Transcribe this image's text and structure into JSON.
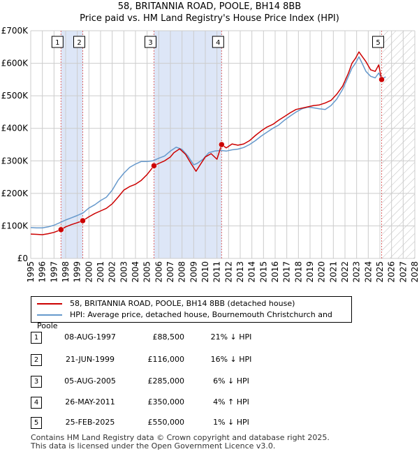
{
  "titles": {
    "line1": "58, BRITANNIA ROAD, POOLE, BH14 8BB",
    "line2": "Price paid vs. HM Land Registry's House Price Index (HPI)"
  },
  "legend": {
    "property_label": "58, BRITANNIA ROAD, POOLE, BH14 8BB (detached house)",
    "hpi_label": "HPI: Average price, detached house, Bournemouth Christchurch and Poole"
  },
  "transactions": [
    {
      "n": "1",
      "date": "08-AUG-1997",
      "price": "£88,500",
      "hpi": "21% ↓ HPI"
    },
    {
      "n": "2",
      "date": "21-JUN-1999",
      "price": "£116,000",
      "hpi": "16% ↓ HPI"
    },
    {
      "n": "3",
      "date": "05-AUG-2005",
      "price": "£285,000",
      "hpi": "6% ↓ HPI"
    },
    {
      "n": "4",
      "date": "26-MAY-2011",
      "price": "£350,000",
      "hpi": "4% ↑ HPI"
    },
    {
      "n": "5",
      "date": "25-FEB-2025",
      "price": "£550,000",
      "hpi": "1% ↓ HPI"
    }
  ],
  "footer": {
    "line1": "Contains HM Land Registry data © Crown copyright and database right 2025.",
    "line2": "This data is licensed under the Open Government Licence v3.0."
  },
  "colors": {
    "property": "#cc0000",
    "hpi": "#6699cc",
    "shade": "#dde6f7",
    "grid": "#cccccc",
    "marker_line": "#dd6666"
  },
  "chart_data": {
    "type": "line",
    "xlim": [
      1995,
      2028
    ],
    "ylim": [
      0,
      700000
    ],
    "xticks": [
      "1995",
      "1996",
      "1997",
      "1998",
      "1999",
      "2000",
      "2001",
      "2002",
      "2003",
      "2004",
      "2005",
      "2006",
      "2007",
      "2008",
      "2009",
      "2010",
      "2011",
      "2012",
      "2013",
      "2014",
      "2015",
      "2016",
      "2017",
      "2018",
      "2019",
      "2020",
      "2021",
      "2022",
      "2023",
      "2024",
      "2025",
      "2026",
      "2027",
      "2028"
    ],
    "yticks": [
      {
        "v": 0,
        "label": "£0"
      },
      {
        "v": 100000,
        "label": "£100K"
      },
      {
        "v": 200000,
        "label": "£200K"
      },
      {
        "v": 300000,
        "label": "£300K"
      },
      {
        "v": 400000,
        "label": "£400K"
      },
      {
        "v": 500000,
        "label": "£500K"
      },
      {
        "v": 600000,
        "label": "£600K"
      },
      {
        "v": 700000,
        "label": "£700K"
      }
    ],
    "shaded_ranges": [
      [
        1997.6,
        1999.47
      ],
      [
        2005.59,
        2011.4
      ]
    ],
    "forecast_start": 2025.15,
    "sales": [
      {
        "n": "1",
        "x": 1997.6,
        "y": 88500
      },
      {
        "n": "2",
        "x": 1999.47,
        "y": 116000
      },
      {
        "n": "3",
        "x": 2005.59,
        "y": 285000
      },
      {
        "n": "4",
        "x": 2011.4,
        "y": 350000
      },
      {
        "n": "5",
        "x": 2025.15,
        "y": 550000
      }
    ],
    "series": [
      {
        "name": "58, BRITANNIA ROAD, POOLE, BH14 8BB (detached house)",
        "x": [
          1995,
          1995.5,
          1996,
          1996.5,
          1997,
          1997.6,
          1998,
          1998.5,
          1999,
          1999.47,
          2000,
          2000.5,
          2001,
          2001.5,
          2002,
          2002.5,
          2003,
          2003.5,
          2004,
          2004.5,
          2005,
          2005.59,
          2006,
          2006.5,
          2007,
          2007.3,
          2007.8,
          2008.3,
          2008.8,
          2009.2,
          2009.6,
          2010,
          2010.5,
          2011,
          2011.4,
          2011.8,
          2012.3,
          2012.8,
          2013.3,
          2013.8,
          2014.3,
          2014.8,
          2015.3,
          2015.8,
          2016.3,
          2016.8,
          2017.3,
          2017.8,
          2018.3,
          2018.8,
          2019.3,
          2019.8,
          2020.3,
          2020.8,
          2021.3,
          2021.8,
          2022.3,
          2022.6,
          2022.9,
          2023.2,
          2023.5,
          2023.8,
          2024.2,
          2024.6,
          2024.9,
          2025.15
        ],
        "y": [
          75000,
          74000,
          73000,
          76000,
          80000,
          88500,
          97000,
          104000,
          110000,
          116000,
          128000,
          138000,
          146000,
          154000,
          168000,
          188000,
          210000,
          221000,
          228000,
          240000,
          258000,
          285000,
          292000,
          300000,
          312000,
          325000,
          337000,
          320000,
          290000,
          268000,
          290000,
          312000,
          322000,
          305000,
          350000,
          340000,
          352000,
          348000,
          352000,
          362000,
          378000,
          392000,
          404000,
          412000,
          425000,
          436000,
          448000,
          458000,
          462000,
          466000,
          470000,
          472000,
          478000,
          486000,
          505000,
          530000,
          570000,
          600000,
          615000,
          635000,
          620000,
          605000,
          580000,
          575000,
          595000,
          550000
        ]
      },
      {
        "name": "HPI: Average price, detached house, Bournemouth Christchurch and Poole",
        "x": [
          1995,
          1995.5,
          1996,
          1996.5,
          1997,
          1997.5,
          1998,
          1998.5,
          1999,
          1999.5,
          2000,
          2000.5,
          2001,
          2001.5,
          2002,
          2002.5,
          2003,
          2003.5,
          2004,
          2004.5,
          2005,
          2005.5,
          2006,
          2006.5,
          2007,
          2007.5,
          2008,
          2008.5,
          2009,
          2009.3,
          2009.8,
          2010.3,
          2010.8,
          2011.3,
          2011.8,
          2012.3,
          2012.8,
          2013.3,
          2013.8,
          2014.3,
          2014.8,
          2015.3,
          2015.8,
          2016.3,
          2016.8,
          2017.3,
          2017.8,
          2018.3,
          2018.8,
          2019.3,
          2019.8,
          2020.3,
          2020.8,
          2021.3,
          2021.8,
          2022.3,
          2022.6,
          2022.9,
          2023.2,
          2023.5,
          2023.8,
          2024.2,
          2024.6,
          2024.9,
          2025.15,
          2025.5
        ],
        "y": [
          95000,
          94000,
          94000,
          97000,
          102000,
          110000,
          118000,
          125000,
          132000,
          140000,
          155000,
          165000,
          178000,
          188000,
          210000,
          240000,
          262000,
          280000,
          290000,
          298000,
          298000,
          300000,
          308000,
          315000,
          330000,
          342000,
          335000,
          315000,
          288000,
          292000,
          305000,
          325000,
          330000,
          332000,
          330000,
          334000,
          336000,
          341000,
          350000,
          362000,
          376000,
          388000,
          400000,
          410000,
          425000,
          438000,
          450000,
          460000,
          465000,
          463000,
          460000,
          458000,
          470000,
          490000,
          520000,
          560000,
          585000,
          600000,
          620000,
          598000,
          575000,
          560000,
          555000,
          570000,
          552000,
          558000
        ]
      }
    ]
  }
}
